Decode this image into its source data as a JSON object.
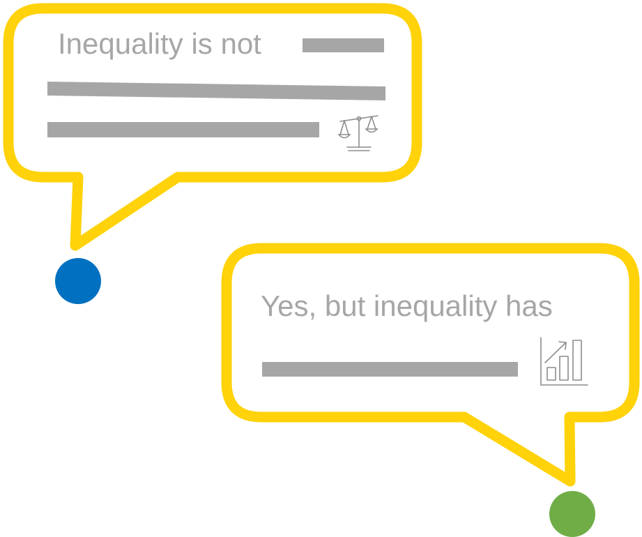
{
  "colors": {
    "bubble_border": "#ffd20a",
    "redaction_bar": "#a6a6a6",
    "icon_stroke": "#8c8c8c",
    "speaker_left": "#0070c0",
    "speaker_right": "#70ad47"
  },
  "bubbles": [
    {
      "speaker": "left",
      "text": "Inequality is not",
      "icon": "scales-icon",
      "redacted_lines": 3
    },
    {
      "speaker": "right",
      "text": "Yes, but inequality has",
      "icon": "bar-chart-growth-icon",
      "redacted_lines": 1
    }
  ]
}
